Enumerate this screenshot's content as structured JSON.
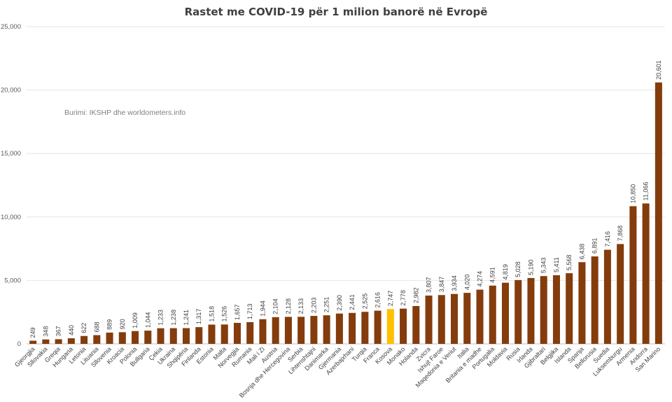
{
  "chart_data": {
    "type": "bar",
    "title": "Rastet me COVID-19 për 1 milion banorë në Evropë",
    "source_note": "Burimi: IKSHP dhe worldometers.info",
    "ylim": [
      0,
      25000
    ],
    "yticks": [
      0,
      5000,
      10000,
      15000,
      20000,
      25000
    ],
    "ytick_labels": [
      "0",
      "5,000",
      "10,000",
      "15,000",
      "20,000",
      "25,000"
    ],
    "grid": true,
    "bar_color": "#843C0C",
    "highlight_color": "#FFC000",
    "highlight_category": "Kosova",
    "categories": [
      "Gjeorgjia",
      "Sllovakia",
      "Greqia",
      "Hungaria",
      "Letonia",
      "Lituania",
      "Sllovenia",
      "Kroacia",
      "Polonia",
      "Bullgaria",
      "Çekia",
      "Ukraina",
      "Shqipëria",
      "Finlanda",
      "Estonia",
      "Malta",
      "Norvegjia",
      "Rumania",
      "Mali i Zi",
      "Austria",
      "Bosnja dhe Hercegovina",
      "Serbia",
      "Lihtenshtajni",
      "Danimarka",
      "Gjermania",
      "Azerbajxhani",
      "Turqia",
      "Franca",
      "Kosova",
      "Monako",
      "Holanda",
      "Zvicra",
      "Ishujt Faroe",
      "Maqedonia e Veriut",
      "Italia",
      "Britania e madhe",
      "Portugalia",
      "Moldavia",
      "Rusia",
      "Irlanda",
      "Gjibraltari",
      "Belgjika",
      "Islanda",
      "Spanja",
      "Bellorusia",
      "Suedia",
      "Luksemburgu",
      "Armenia",
      "Andorra",
      "San Marino"
    ],
    "values": [
      249,
      348,
      367,
      440,
      622,
      688,
      889,
      920,
      1009,
      1044,
      1233,
      1238,
      1241,
      1317,
      1518,
      1526,
      1657,
      1713,
      1944,
      2104,
      2128,
      2133,
      2203,
      2251,
      2390,
      2441,
      2525,
      2616,
      2747,
      2778,
      2982,
      3807,
      3847,
      3934,
      4020,
      4274,
      4591,
      4819,
      5028,
      5190,
      5343,
      5411,
      5568,
      6438,
      6891,
      7416,
      7868,
      10850,
      11066,
      20601
    ],
    "value_labels": [
      "249",
      "348",
      "367",
      "440",
      "622",
      "688",
      "889",
      "920",
      "1,009",
      "1,044",
      "1,233",
      "1,238",
      "1,241",
      "1,317",
      "1,518",
      "1,526",
      "1,657",
      "1,713",
      "1,944",
      "2,104",
      "2,128",
      "2,133",
      "2,203",
      "2,251",
      "2,390",
      "2,441",
      "2,525",
      "2,616",
      "2,747",
      "2,778",
      "2,982",
      "3,807",
      "3,847",
      "3,934",
      "4,020",
      "4,274",
      "4,591",
      "4,819",
      "5,028",
      "5,190",
      "5,343",
      "5,411",
      "5,568",
      "6,438",
      "6,891",
      "7,416",
      "7,868",
      "10,850",
      "11,066",
      "20,601"
    ]
  }
}
